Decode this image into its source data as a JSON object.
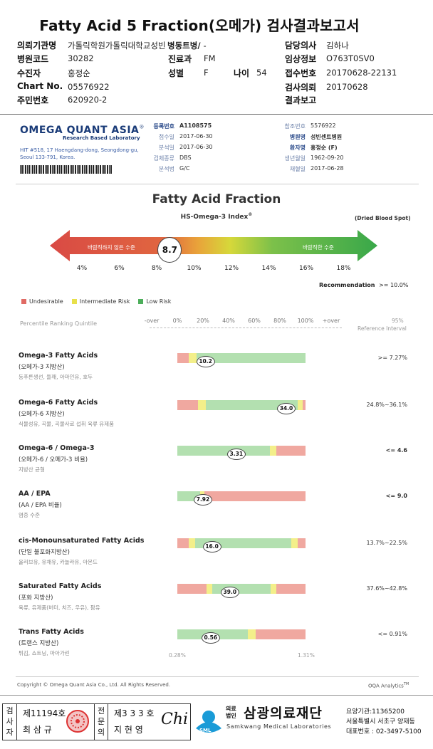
{
  "header": {
    "title": "Fatty Acid 5 Fraction(오메가) 검사결과보고서",
    "fields": {
      "institution_label": "의뢰기관명",
      "institution": "가톨릭학원가톨릭대학교성빈센트병원",
      "ward_label": "병동트병/",
      "ward": "-",
      "doctor_label": "담당의사",
      "doctor": "김하나",
      "hospital_code_label": "병원코드",
      "hospital_code": "30282",
      "dept_label": "진료과",
      "dept": "FM",
      "clinical_info_label": "임상정보",
      "clinical_info": "O763T0SV0",
      "patient_label": "수진자",
      "patient": "홍정순",
      "sex_label": "성별",
      "sex": "F",
      "age_label": "나이",
      "age": "54",
      "receipt_no_label": "접수번호",
      "receipt_no": "20170628-22131",
      "chart_label": "Chart No.",
      "chart": "05576922",
      "request_label": "검사의뢰",
      "request": "20170628",
      "id_label": "주민번호",
      "id": "620920-2",
      "report_label": "결과보고",
      "report": ""
    }
  },
  "lab": {
    "logo": "OMEGA QUANT ASIA",
    "logo_reg": "®",
    "logo_sub": "Research Based Laboratory",
    "address_1": "HIT #518, 17 Haengdang-dong, Seongdong-gu,",
    "address_2": "Seoul 133-791, Korea.",
    "meta_left": [
      {
        "label": "등록번호",
        "value": "A1108575",
        "bold": true
      },
      {
        "label": "접수일",
        "value": "2017-06-30"
      },
      {
        "label": "분석일",
        "value": "2017-06-30"
      },
      {
        "label": "검체종류",
        "value": "DBS"
      },
      {
        "label": "분석법",
        "value": "G/C"
      }
    ],
    "meta_right": [
      {
        "label": "참조번호",
        "value": "5576922"
      },
      {
        "label": "병원명",
        "value": "성빈센트병원",
        "bold": true
      },
      {
        "label": "환자명",
        "value": "홍정순 (F)",
        "bold": true
      },
      {
        "label": "생년월일",
        "value": "1962-09-20"
      },
      {
        "label": "채혈일",
        "value": "2017-06-28"
      }
    ]
  },
  "fraction": {
    "title": "Fatty Acid Fraction",
    "index_label": "HS-Omega-3 Index",
    "index_reg": "®",
    "dbs_label": "(Dried Blood Spot)",
    "arrow_left_text": "바람직하지 않은 수준",
    "arrow_right_text": "바람직한 수준",
    "value": "8.7",
    "value_num": 8.7,
    "ticks": [
      "4%",
      "6%",
      "8%",
      "10%",
      "12%",
      "14%",
      "16%",
      "18%"
    ],
    "recommendation_label": "Recommendation",
    "recommendation_value": ">= 10.0%"
  },
  "legend": {
    "undesirable": "Undesirable",
    "intermediate": "Intermediate Risk",
    "low": "Low Risk"
  },
  "percentile": {
    "label": "Percentile Ranking Quintile",
    "scale": [
      "-over",
      "0%",
      "20%",
      "40%",
      "60%",
      "80%",
      "100%",
      "+over"
    ],
    "ref_1": "95%",
    "ref_2": "Reference Interval"
  },
  "rows": [
    {
      "title": "Omega-3 Fatty Acids",
      "sub": "(오메가-3 지방산)",
      "food": "등푸른생선, 들깨, 아마인유, 호두",
      "value": "10.2",
      "ref": ">= 7.27%",
      "ref_bold": false,
      "segs": [
        [
          "red",
          0.09
        ],
        [
          "yel",
          0.06
        ],
        [
          "grn",
          0.85
        ]
      ],
      "pos": 0.22
    },
    {
      "title": "Omega-6 Fatty Acids",
      "sub": "(오메가-6 지방산)",
      "food": "식물성유, 곡물, 곡물사료 섭취 육류 유제품",
      "value": "34.0",
      "ref": "24.8%~36.1%",
      "ref_bold": false,
      "segs": [
        [
          "red",
          0.16
        ],
        [
          "yel",
          0.06
        ],
        [
          "grn",
          0.72
        ],
        [
          "yel",
          0.04
        ],
        [
          "red",
          0.02
        ]
      ],
      "pos": 0.85
    },
    {
      "title": "Omega-6 / Omega-3",
      "sub": "(오메가-6 / 오메가-3 비율)",
      "food": "지방산 균형",
      "value": "3.31",
      "ref": "<= 4.6",
      "ref_bold": true,
      "segs": [
        [
          "grn",
          0.72
        ],
        [
          "yel",
          0.05
        ],
        [
          "red",
          0.23
        ]
      ],
      "pos": 0.46
    },
    {
      "title": "AA / EPA",
      "sub": "(AA / EPA 비율)",
      "food": "염증 수준",
      "value": "7.92",
      "ref": "<= 9.0",
      "ref_bold": true,
      "segs": [
        [
          "grn",
          0.18
        ],
        [
          "yel",
          0.03
        ],
        [
          "red",
          0.79
        ]
      ],
      "pos": 0.2
    },
    {
      "title": "cis-Monounsaturated Fatty Acids",
      "sub": "(단일 불포화지방산)",
      "food": "올리브유, 유채유, 카놀라유, 아몬드",
      "value": "16.0",
      "ref": "13.7%~22.5%",
      "ref_bold": false,
      "segs": [
        [
          "red",
          0.09
        ],
        [
          "yel",
          0.05
        ],
        [
          "grn",
          0.75
        ],
        [
          "yel",
          0.05
        ],
        [
          "red",
          0.06
        ]
      ],
      "pos": 0.27
    },
    {
      "title": "Saturated Fatty Acids",
      "sub": "(포화 지방산)",
      "food": "육류, 유제품(버터, 치즈, 우유), 팜유",
      "value": "39.0",
      "ref": "37.6%~42.8%",
      "ref_bold": false,
      "segs": [
        [
          "red",
          0.23
        ],
        [
          "yel",
          0.04
        ],
        [
          "grn",
          0.46
        ],
        [
          "yel",
          0.04
        ],
        [
          "red",
          0.23
        ]
      ],
      "pos": 0.41
    },
    {
      "title": "Trans Fatty Acids",
      "sub": "(트랜스 지방산)",
      "food": "튀김, 쇼트닝, 마아가린",
      "value": "0.56",
      "ref": "<= 0.91%",
      "ref_bold": false,
      "segs": [
        [
          "grn",
          0.55
        ],
        [
          "yel",
          0.06
        ],
        [
          "red",
          0.39
        ]
      ],
      "pos": 0.26
    }
  ],
  "trans_min": "0.28%",
  "trans_max": "1.31%",
  "footer": {
    "copyright": "Copyright © Omega Quant Asia Co., Ltd.  All Rights Reserved.",
    "oqa": "OQA Analytics",
    "oqa_tm": "TM"
  },
  "signature": {
    "examiner_label": "검사자",
    "examiner_license": "제11194호",
    "examiner_name": "최 삼 규",
    "specialist_label": "전문의",
    "specialist_license": "제3 3 3 호",
    "specialist_name": "지 현 영",
    "org_prefix_1": "의료",
    "org_prefix_2": "법인",
    "org_name": "삼광의료재단",
    "org_en": "Samkwang Medical Laboratories",
    "sml": "SML",
    "agency_code": "요양기관:11365200",
    "address": "서울특별시 서초구 양재동",
    "phone": "대표번호 : 02-3497-5100",
    "sign": "Chi"
  }
}
